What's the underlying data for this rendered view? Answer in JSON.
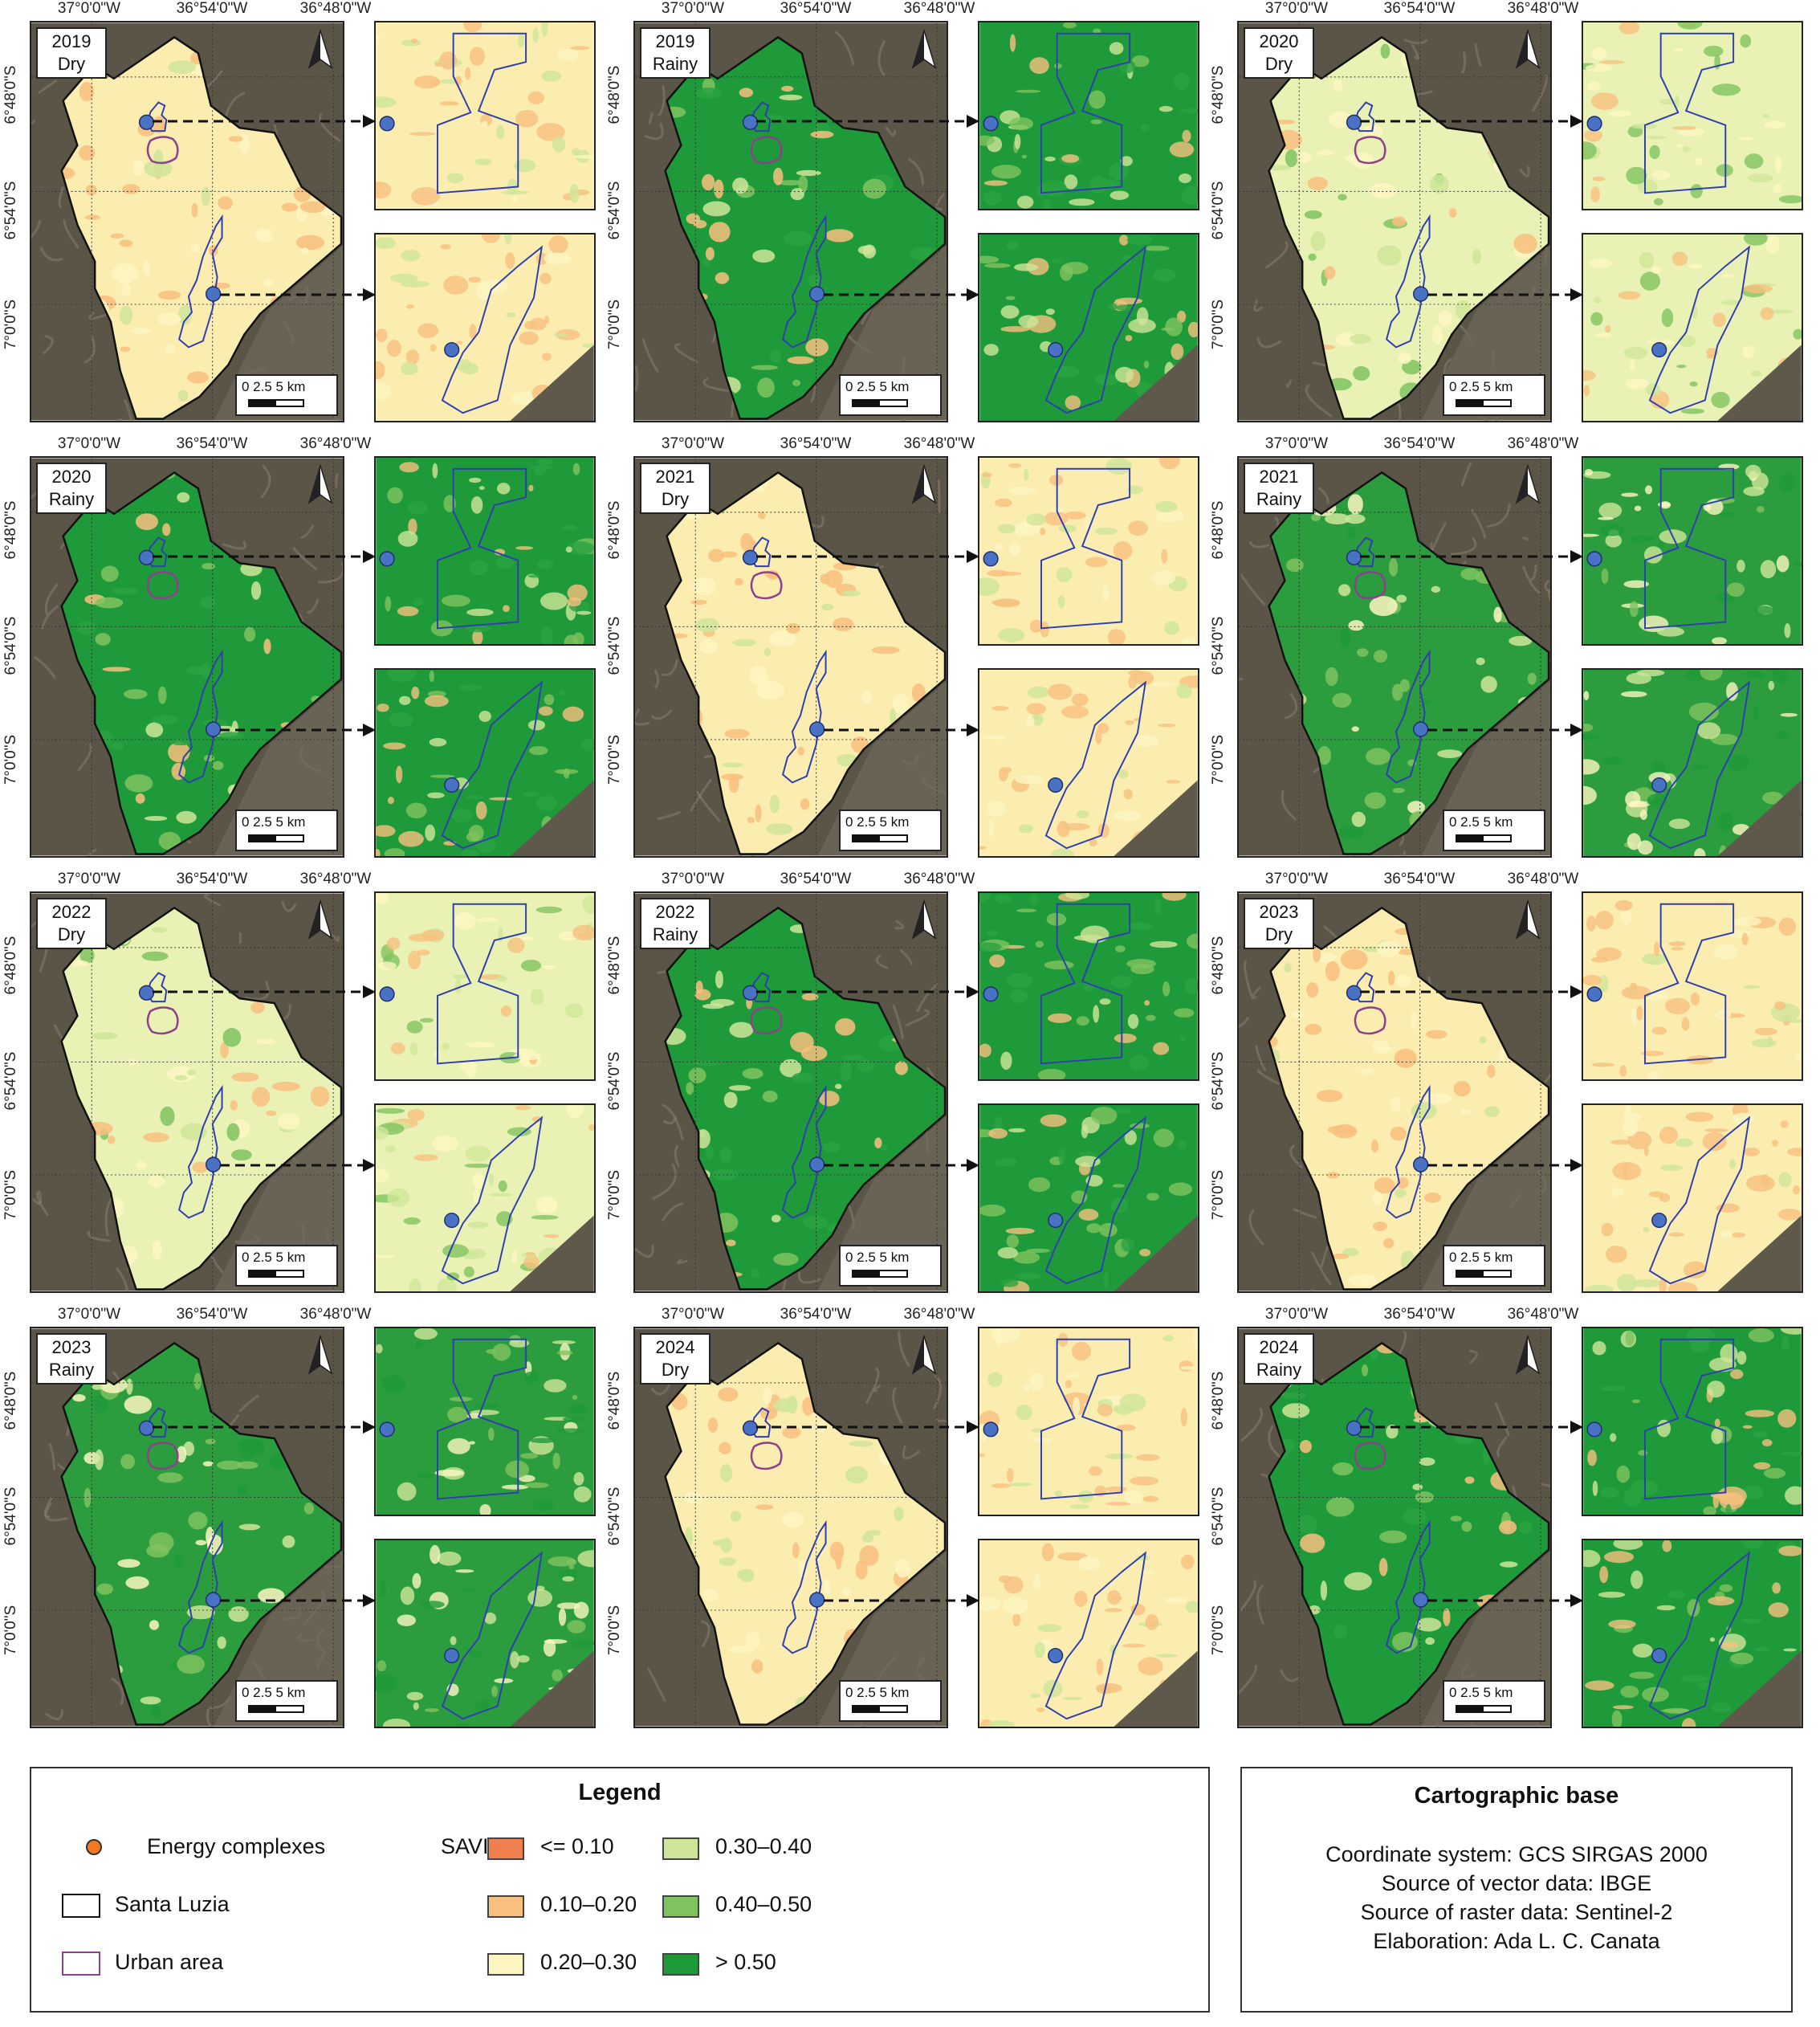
{
  "coords": {
    "lon_labels": [
      "37°0'0\"W",
      "36°54'0\"W",
      "36°48'0\"W"
    ],
    "lat_labels": [
      "6°48'0\"S",
      "6°54'0\"S",
      "7°0'0\"S"
    ]
  },
  "scale": {
    "text": "0  2.5  5 km"
  },
  "panels": [
    {
      "year": "2019",
      "season": "Dry",
      "regime": "dry1"
    },
    {
      "year": "2019",
      "season": "Rainy",
      "regime": "wet1"
    },
    {
      "year": "2020",
      "season": "Dry",
      "regime": "dry2"
    },
    {
      "year": "2020",
      "season": "Rainy",
      "regime": "wet1"
    },
    {
      "year": "2021",
      "season": "Dry",
      "regime": "dry1"
    },
    {
      "year": "2021",
      "season": "Rainy",
      "regime": "wet2"
    },
    {
      "year": "2022",
      "season": "Dry",
      "regime": "dry2"
    },
    {
      "year": "2022",
      "season": "Rainy",
      "regime": "wet1"
    },
    {
      "year": "2023",
      "season": "Dry",
      "regime": "dry1"
    },
    {
      "year": "2023",
      "season": "Rainy",
      "regime": "wet2"
    },
    {
      "year": "2024",
      "season": "Dry",
      "regime": "dry1"
    },
    {
      "year": "2024",
      "season": "Rainy",
      "regime": "wet1"
    }
  ],
  "legend": {
    "title": "Legend",
    "energy": "Energy complexes",
    "santa_luzia": "Santa Luzia",
    "urban": "Urban area",
    "savi_label": "SAVI:",
    "classes": [
      {
        "label": "<= 0.10",
        "color": "#ef7f4f"
      },
      {
        "label": "0.10–0.20",
        "color": "#f8c07f"
      },
      {
        "label": "0.20–0.30",
        "color": "#fdf6c3"
      },
      {
        "label": "0.30–0.40",
        "color": "#cfe69a"
      },
      {
        "label": "0.40–0.50",
        "color": "#7fc35f"
      },
      {
        "label": "> 0.50",
        "color": "#1f9a3a"
      }
    ]
  },
  "cartographic": {
    "title": "Cartographic base",
    "lines": [
      "Coordinate system: GCS SIRGAS 2000",
      "Source of vector data: IBGE",
      "Source of raster data: Sentinel-2",
      "Elaboration: Ada L. C. Canata"
    ]
  },
  "colors": {
    "background_terrain": "#5b5548",
    "boundary": "#111111",
    "urban_outline": "#8e3f8e",
    "complex_outline": "#2f3fb0",
    "complex_marker": "#4a72c4"
  }
}
